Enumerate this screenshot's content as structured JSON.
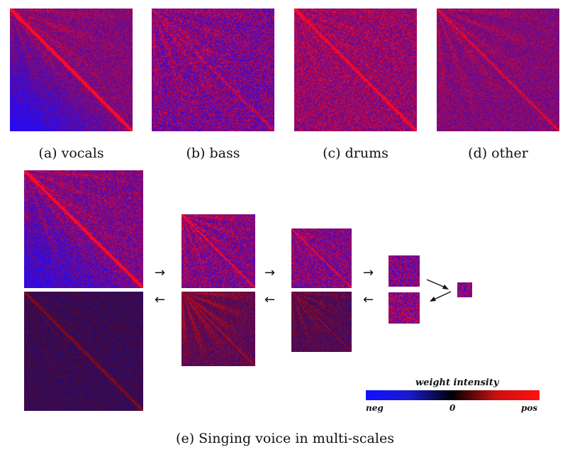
{
  "captions": {
    "a": "(a) vocals",
    "b": "(b) bass",
    "c": "(c) drums",
    "d": "(d) other",
    "e": "(e) Singing voice in multi-scales"
  },
  "legend": {
    "title": "weight intensity",
    "neg": "neg",
    "zero": "0",
    "pos": "pos",
    "colors": [
      "#1010ff",
      "#000000",
      "#ff1010"
    ]
  },
  "arrows": {
    "right": "→",
    "left": "←"
  }
}
